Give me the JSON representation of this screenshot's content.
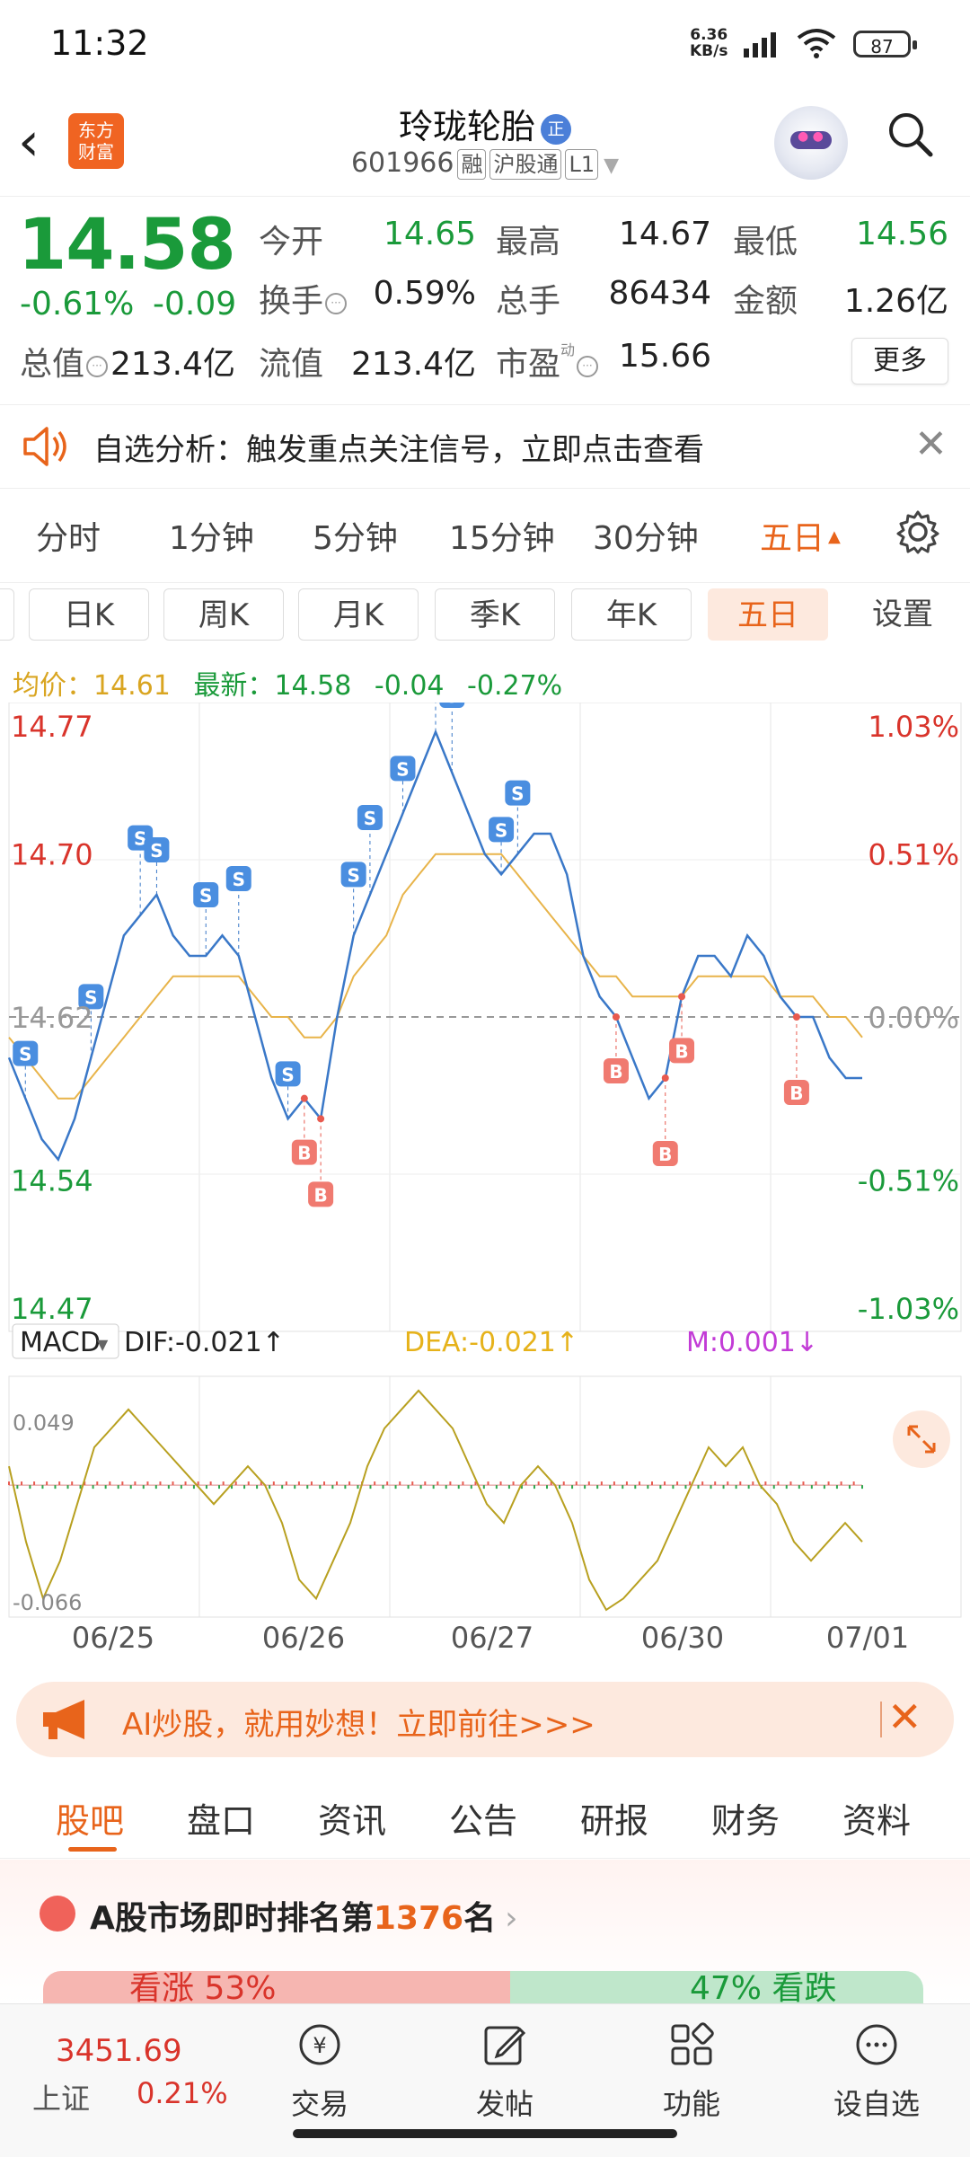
{
  "status_bar": {
    "time": "11:32",
    "net_speed": "6.36",
    "net_unit": "KB/s",
    "battery": "87"
  },
  "header": {
    "logo_line1": "东方",
    "logo_line2": "财富",
    "title": "玲珑轮胎",
    "title_badge": "正",
    "code": "601966",
    "tags": [
      "融",
      "沪股通",
      "L1"
    ]
  },
  "quote": {
    "price": "14.58",
    "change_pct": "-0.61%",
    "change": "-0.09",
    "fields": [
      {
        "label": "今开",
        "value": "14.65"
      },
      {
        "label": "最高",
        "value": "14.67"
      },
      {
        "label": "最低",
        "value": "14.56"
      },
      {
        "label": "换手",
        "value": "0.59%"
      },
      {
        "label": "总手",
        "value": "86434"
      },
      {
        "label": "金额",
        "value": "1.26亿"
      },
      {
        "label": "总值",
        "value": "213.4亿"
      },
      {
        "label": "流值",
        "value": "213.4亿"
      },
      {
        "label": "市盈",
        "value": "15.66"
      }
    ],
    "pe_sup": "动",
    "more_label": "更多"
  },
  "notice": {
    "text": "自选分析：触发重点关注信号，立即点击查看"
  },
  "period_tabs": [
    "分时",
    "1分钟",
    "5分钟",
    "15分钟",
    "30分钟",
    "五日"
  ],
  "period_active": "五日",
  "k_tabs": [
    "日K",
    "周K",
    "月K",
    "季K",
    "年K",
    "五日",
    "设置"
  ],
  "k_active": "五日",
  "avg_line": {
    "avg_label": "均价：",
    "avg_value": "14.61",
    "latest_label": "最新：",
    "latest_value": "14.58",
    "delta": "-0.04",
    "delta_pct": "-0.27%"
  },
  "chart_data": {
    "type": "line",
    "x_labels": [
      "06/25",
      "06/26",
      "06/27",
      "06/30",
      "07/01"
    ],
    "y_left_ticks": [
      "14.77",
      "14.70",
      "14.62",
      "14.54",
      "14.47"
    ],
    "y_right_ticks": [
      "1.03%",
      "0.51%",
      "0.00%",
      "-0.51%",
      "-1.03%"
    ],
    "ylim": [
      14.47,
      14.77
    ],
    "reference_price": 14.62,
    "series": [
      {
        "values": [
          14.6,
          14.58,
          14.56,
          14.55,
          14.57,
          14.6,
          14.63,
          14.66,
          14.67,
          14.68,
          14.66,
          14.65,
          14.65,
          14.66,
          14.65,
          14.62,
          14.59,
          14.57,
          14.58,
          14.57,
          14.62,
          14.66,
          14.68,
          14.7,
          14.72,
          14.74,
          14.76,
          14.74,
          14.72,
          14.7,
          14.69,
          14.7,
          14.71,
          14.71,
          14.69,
          14.65,
          14.63,
          14.62,
          14.6,
          14.58,
          14.59,
          14.63,
          14.65,
          14.65,
          14.64,
          14.66,
          14.65,
          14.63,
          14.62,
          14.62,
          14.6,
          14.59,
          14.59
        ]
      },
      {
        "values": [
          14.61,
          14.6,
          14.59,
          14.58,
          14.58,
          14.59,
          14.6,
          14.61,
          14.62,
          14.63,
          14.64,
          14.64,
          14.64,
          14.64,
          14.64,
          14.63,
          14.62,
          14.62,
          14.61,
          14.61,
          14.62,
          14.64,
          14.65,
          14.66,
          14.68,
          14.69,
          14.7,
          14.7,
          14.7,
          14.7,
          14.7,
          14.69,
          14.68,
          14.67,
          14.66,
          14.65,
          14.64,
          14.64,
          14.63,
          14.63,
          14.63,
          14.63,
          14.64,
          14.64,
          14.64,
          14.64,
          14.64,
          14.63,
          14.63,
          14.63,
          14.62,
          14.62,
          14.61
        ]
      }
    ],
    "sell_label": "S",
    "buy_label": "B",
    "macd": {
      "label": "MACD",
      "dif": "DIF:-0.021↑",
      "dea": "DEA:-0.021↑",
      "m": "M:0.001↓",
      "ymax": "0.049",
      "ymin": "-0.066",
      "dif_values": [
        0.01,
        -0.03,
        -0.06,
        -0.04,
        -0.01,
        0.02,
        0.03,
        0.04,
        0.03,
        0.02,
        0.01,
        0.0,
        -0.01,
        0.0,
        0.01,
        0.0,
        -0.02,
        -0.05,
        -0.06,
        -0.04,
        -0.02,
        0.01,
        0.03,
        0.04,
        0.05,
        0.04,
        0.03,
        0.01,
        -0.01,
        -0.02,
        0.0,
        0.01,
        0.0,
        -0.02,
        -0.05,
        -0.066,
        -0.06,
        -0.05,
        -0.04,
        -0.02,
        0.0,
        0.02,
        0.01,
        0.02,
        0.0,
        -0.01,
        -0.03,
        -0.04,
        -0.03,
        -0.02,
        -0.03
      ]
    }
  },
  "banner": {
    "text": "AI炒股，就用妙想！立即前往>>>"
  },
  "sub_tabs": [
    "股吧",
    "盘口",
    "资讯",
    "公告",
    "研报",
    "财务",
    "资料"
  ],
  "sub_active": "股吧",
  "rank": {
    "prefix": "A股市场即时排名第",
    "rank_num": "1376",
    "suffix": "名",
    "up_text": "看涨 53%",
    "down_text": "47% 看跌"
  },
  "bottom_nav": {
    "index_value": "3451.69",
    "index_name": "上证",
    "index_pct": "0.21%",
    "items": [
      "交易",
      "发帖",
      "功能",
      "设自选"
    ]
  }
}
